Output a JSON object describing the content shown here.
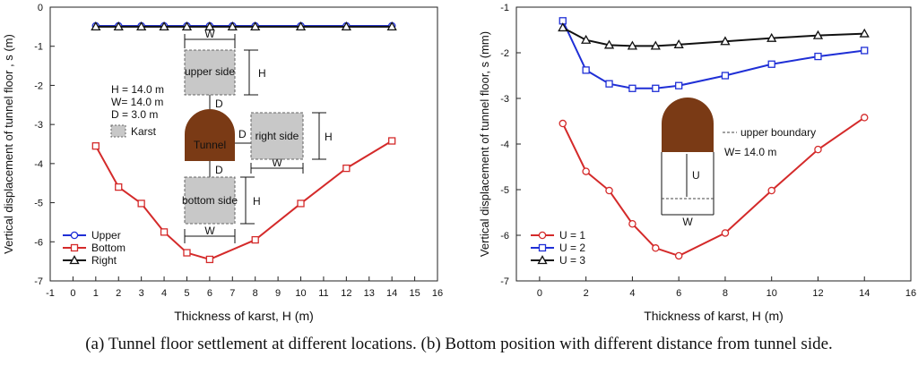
{
  "caption": {
    "a": "(a) Tunnel floor settlement at different locations.",
    "b": "(b) Bottom position with different distance from tunnel side."
  },
  "colors": {
    "upper": "#1f2fd6",
    "bottom": "#d42a2a",
    "right": "#111111",
    "tunnel": "#7a3a15",
    "karst": "#c8c8c8"
  },
  "chart_data": [
    {
      "type": "line",
      "xlabel": "Thickness of karst, H (m)",
      "ylabel": "Vertical displacement of tunnel floor , s (m)",
      "xlim": [
        -1,
        16
      ],
      "ylim": [
        -7,
        0
      ],
      "xticks": [
        -1,
        0,
        1,
        2,
        3,
        4,
        5,
        6,
        7,
        8,
        9,
        10,
        11,
        12,
        13,
        14,
        15,
        16
      ],
      "yticks": [
        0,
        -1,
        -2,
        -3,
        -4,
        -5,
        -6,
        -7
      ],
      "legend_position": "bottom-left",
      "series": [
        {
          "name": "Upper",
          "color": "#1f2fd6",
          "marker": "circle",
          "x": [
            1,
            2,
            3,
            4,
            5,
            6,
            7,
            8,
            10,
            12,
            14
          ],
          "y": [
            -0.48,
            -0.48,
            -0.48,
            -0.48,
            -0.48,
            -0.48,
            -0.48,
            -0.48,
            -0.48,
            -0.48,
            -0.48
          ]
        },
        {
          "name": "Bottom",
          "color": "#d42a2a",
          "marker": "square",
          "x": [
            1,
            2,
            3,
            4,
            5,
            6,
            8,
            10,
            12,
            14
          ],
          "y": [
            -3.55,
            -4.6,
            -5.02,
            -5.75,
            -6.28,
            -6.45,
            -5.95,
            -5.02,
            -4.12,
            -3.42
          ]
        },
        {
          "name": "Right",
          "color": "#111111",
          "marker": "triangle",
          "x": [
            1,
            2,
            3,
            4,
            5,
            6,
            7,
            8,
            10,
            12,
            14
          ],
          "y": [
            -0.5,
            -0.5,
            -0.5,
            -0.5,
            -0.5,
            -0.5,
            -0.5,
            -0.5,
            -0.5,
            -0.5,
            -0.5
          ]
        }
      ],
      "annotations": {
        "params": [
          "H = 14.0 m",
          "W= 14.0 m",
          "D = 3.0 m"
        ],
        "karst_legend": "Karst",
        "tunnel": "Tunnel",
        "upper_side": "upper side",
        "right_side": "right side",
        "bottom_side": "bottom side",
        "W": "W",
        "H": "H",
        "D": "D"
      }
    },
    {
      "type": "line",
      "xlabel": "Thickness of karst, H (m)",
      "ylabel": "Vertical displacement of tunnel floor, s (mm)",
      "xlim": [
        -1,
        16
      ],
      "ylim": [
        -7,
        -1
      ],
      "xticks": [
        0,
        2,
        4,
        6,
        8,
        10,
        12,
        14,
        16
      ],
      "yticks": [
        -1,
        -2,
        -3,
        -4,
        -5,
        -6,
        -7
      ],
      "legend_position": "bottom-left",
      "series": [
        {
          "name": "U = 1",
          "color": "#d42a2a",
          "marker": "circle",
          "x": [
            1,
            2,
            3,
            4,
            5,
            6,
            8,
            10,
            12,
            14
          ],
          "y": [
            -3.55,
            -4.6,
            -5.02,
            -5.75,
            -6.28,
            -6.45,
            -5.95,
            -5.02,
            -4.12,
            -3.42
          ]
        },
        {
          "name": "U = 2",
          "color": "#1f2fd6",
          "marker": "square",
          "x": [
            1,
            2,
            3,
            4,
            5,
            6,
            8,
            10,
            12,
            14
          ],
          "y": [
            -1.3,
            -2.38,
            -2.68,
            -2.78,
            -2.78,
            -2.72,
            -2.5,
            -2.25,
            -2.08,
            -1.95
          ]
        },
        {
          "name": "U = 3",
          "color": "#111111",
          "marker": "triangle",
          "x": [
            1,
            2,
            3,
            4,
            5,
            6,
            8,
            10,
            12,
            14
          ],
          "y": [
            -1.45,
            -1.72,
            -1.83,
            -1.85,
            -1.85,
            -1.82,
            -1.75,
            -1.68,
            -1.62,
            -1.58
          ]
        }
      ],
      "annotations": {
        "upper_boundary": "upper boundary",
        "width": "W= 14.0 m",
        "U": "U",
        "W": "W"
      }
    }
  ]
}
